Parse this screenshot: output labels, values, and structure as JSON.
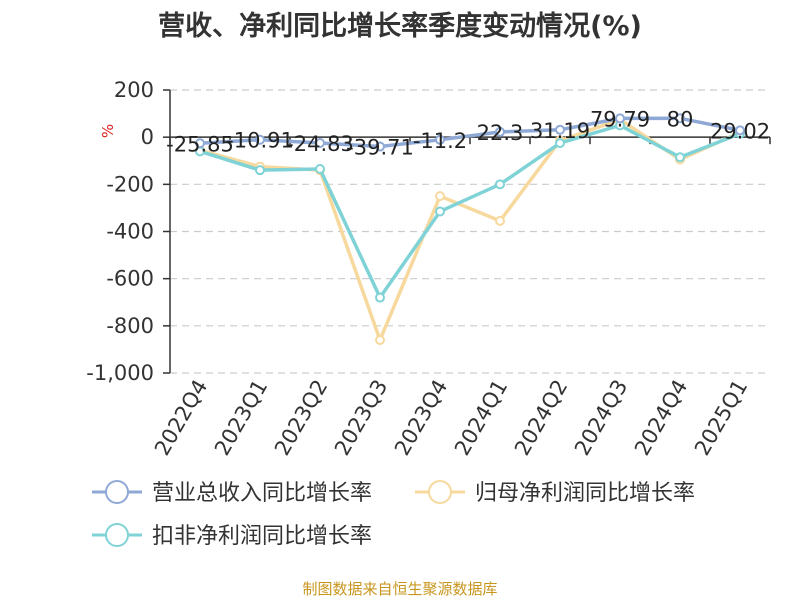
{
  "title": "营收、净利同比增长率季度变动情况(%)",
  "source": "制图数据来自恒生聚源数据库",
  "colors": {
    "revenue": "#8fa9d6",
    "net_profit": "#f7d89d",
    "deducted_net_profit": "#7fd3d6",
    "unit": "#dd2222",
    "axis": "#333333",
    "grid": "#cccccc"
  },
  "chart_data": {
    "type": "line",
    "title": "营收、净利同比增长率季度变动情况(%)",
    "ylabel": "%",
    "ylim": [
      -1000,
      200
    ],
    "yticks": [
      200,
      0,
      -200,
      -400,
      -600,
      -800,
      -1000
    ],
    "ytick_labels": [
      "200",
      "0",
      "-200",
      "-400",
      "-600",
      "-800",
      "-1,000"
    ],
    "grid": true,
    "legend_position": "bottom-left",
    "categories": [
      "2022Q4",
      "2023Q1",
      "2023Q2",
      "2023Q3",
      "2023Q4",
      "2024Q1",
      "2024Q2",
      "2024Q3",
      "2024Q4",
      "2025Q1"
    ],
    "series": [
      {
        "name": "营业总收入同比增长率",
        "color_key": "revenue",
        "values": [
          -25.85,
          -10.91,
          -24.83,
          -39.71,
          -11.2,
          22.3,
          31.19,
          79.79,
          80,
          29.02
        ],
        "labels": [
          "-25.85",
          "-10.91",
          "-24.83",
          "-39.71",
          "-11.2",
          "22.3",
          "31.19",
          "79.79",
          "80",
          "29.02"
        ]
      },
      {
        "name": "归母净利润同比增长率",
        "color_key": "net_profit",
        "values": [
          -55,
          -125,
          -140,
          -860,
          -250,
          -355,
          -15,
          75,
          -95,
          20
        ]
      },
      {
        "name": "扣非净利润同比增长率",
        "color_key": "deducted_net_profit",
        "values": [
          -60,
          -140,
          -135,
          -680,
          -315,
          -200,
          -25,
          50,
          -85,
          15
        ]
      }
    ]
  }
}
